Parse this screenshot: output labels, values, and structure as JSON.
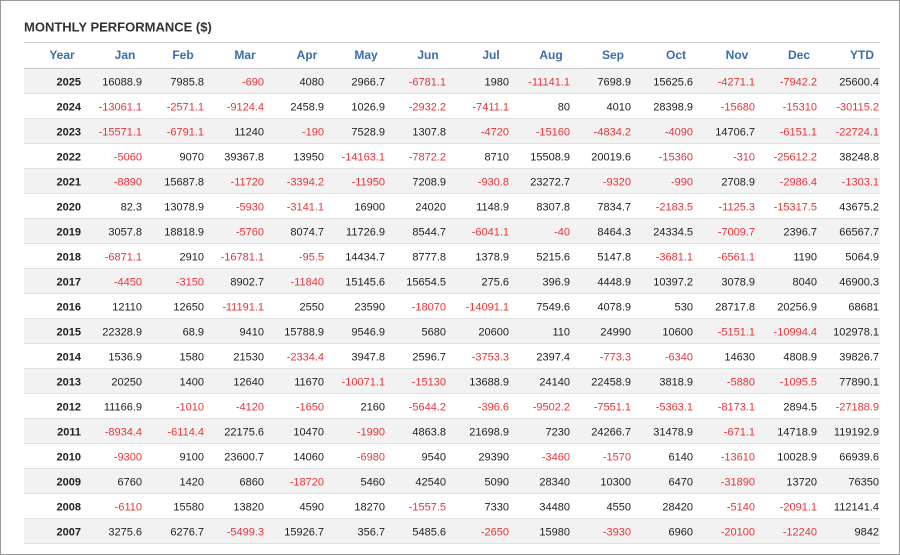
{
  "table": {
    "title": "MONTHLY PERFORMANCE ($)",
    "columns": [
      "Year",
      "Jan",
      "Feb",
      "Mar",
      "Apr",
      "May",
      "Jun",
      "Jul",
      "Aug",
      "Sep",
      "Oct",
      "Nov",
      "Dec",
      "YTD"
    ],
    "rows": [
      [
        2025,
        16088.9,
        7985.8,
        -690,
        4080,
        2966.7,
        -6781.1,
        1980,
        -11141.1,
        7698.9,
        15625.6,
        -4271.1,
        -7942.2,
        25600.4
      ],
      [
        2024,
        -13061.1,
        -2571.1,
        -9124.4,
        2458.9,
        1026.9,
        -2932.2,
        -7411.1,
        80,
        4010,
        28398.9,
        -15680,
        -15310,
        -30115.2
      ],
      [
        2023,
        -15571.1,
        -6791.1,
        11240,
        -190,
        7528.9,
        1307.8,
        -4720,
        -15160,
        -4834.2,
        -4090,
        14706.7,
        -6151.1,
        -22724.1
      ],
      [
        2022,
        -5060,
        9070,
        39367.8,
        13950,
        -14163.1,
        -7872.2,
        8710,
        15508.9,
        20019.6,
        -15360,
        -310,
        -25612.2,
        38248.8
      ],
      [
        2021,
        -8890,
        15687.8,
        -11720,
        -3394.2,
        -11950,
        7208.9,
        -930.8,
        23272.7,
        -9320,
        -990,
        2708.9,
        -2986.4,
        -1303.1
      ],
      [
        2020,
        82.3,
        13078.9,
        -5930,
        -3141.1,
        16900,
        24020,
        1148.9,
        8307.8,
        7834.7,
        -2183.5,
        -1125.3,
        -15317.5,
        43675.2
      ],
      [
        2019,
        3057.8,
        18818.9,
        -5760,
        8074.7,
        11726.9,
        8544.7,
        -6041.1,
        -40,
        8464.3,
        24334.5,
        -7009.7,
        2396.7,
        66567.7
      ],
      [
        2018,
        -6871.1,
        2910,
        -16781.1,
        -95.5,
        14434.7,
        8777.8,
        1378.9,
        5215.6,
        5147.8,
        -3681.1,
        -6561.1,
        1190,
        5064.9
      ],
      [
        2017,
        -4450,
        -3150,
        8902.7,
        -11840,
        15145.6,
        15654.5,
        275.6,
        396.9,
        4448.9,
        10397.2,
        3078.9,
        8040,
        46900.3
      ],
      [
        2016,
        12110,
        12650,
        -11191.1,
        2550,
        23590,
        -18070,
        -14091.1,
        7549.6,
        4078.9,
        530,
        28717.8,
        20256.9,
        68681
      ],
      [
        2015,
        22328.9,
        68.9,
        9410,
        15788.9,
        9546.9,
        5680,
        20600,
        110,
        24990,
        10600,
        -5151.1,
        -10994.4,
        102978.1
      ],
      [
        2014,
        1536.9,
        1580,
        21530,
        -2334.4,
        3947.8,
        2596.7,
        -3753.3,
        2397.4,
        -773.3,
        -6340,
        14630,
        4808.9,
        39826.7
      ],
      [
        2013,
        20250,
        1400,
        12640,
        11670,
        -10071.1,
        -15130,
        13688.9,
        24140,
        22458.9,
        3818.9,
        -5880,
        -1095.5,
        77890.1
      ],
      [
        2012,
        11166.9,
        -1010,
        -4120,
        -1650,
        2160,
        -5644.2,
        -396.6,
        -9502.2,
        -7551.1,
        -5363.1,
        -8173.1,
        2894.5,
        -27188.9
      ],
      [
        2011,
        -8934.4,
        -6114.4,
        22175.6,
        10470,
        -1990,
        4863.8,
        21698.9,
        7230,
        24266.7,
        31478.9,
        -671.1,
        14718.9,
        119192.9
      ],
      [
        2010,
        -9300,
        9100,
        23600.7,
        14060,
        -6980,
        9540,
        29390,
        -3460,
        -1570,
        6140,
        -13610,
        10028.9,
        66939.6
      ],
      [
        2009,
        6760,
        1420,
        6860,
        -18720,
        5460,
        42540,
        5090,
        28340,
        10300,
        6470,
        -31890,
        13720,
        76350
      ],
      [
        2008,
        -6110,
        15580,
        13820,
        4590,
        18270,
        -1557.5,
        7330,
        34480,
        4550,
        28420,
        -5140,
        -2091.1,
        112141.4
      ],
      [
        2007,
        3275.6,
        6276.7,
        -5499.3,
        15926.7,
        356.7,
        5485.6,
        -2650,
        15980,
        -3930,
        6960,
        -20100,
        -12240,
        9842
      ]
    ]
  }
}
